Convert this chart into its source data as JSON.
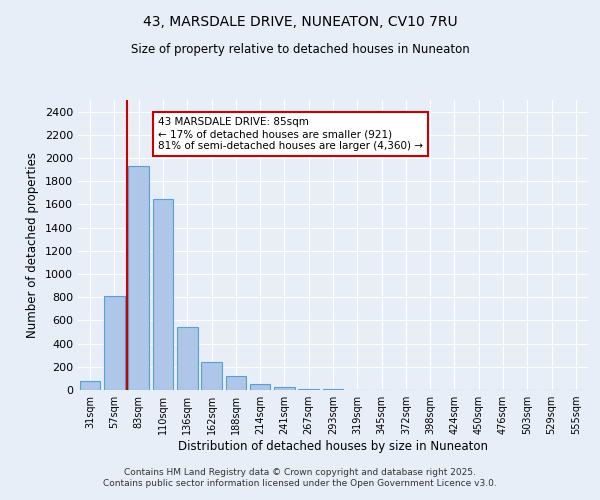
{
  "title1": "43, MARSDALE DRIVE, NUNEATON, CV10 7RU",
  "title2": "Size of property relative to detached houses in Nuneaton",
  "xlabel": "Distribution of detached houses by size in Nuneaton",
  "ylabel": "Number of detached properties",
  "annotation_title": "43 MARSDALE DRIVE: 85sqm",
  "annotation_line1": "← 17% of detached houses are smaller (921)",
  "annotation_line2": "81% of semi-detached houses are larger (4,360) →",
  "footer1": "Contains HM Land Registry data © Crown copyright and database right 2025.",
  "footer2": "Contains public sector information licensed under the Open Government Licence v3.0.",
  "categories": [
    "31sqm",
    "57sqm",
    "83sqm",
    "110sqm",
    "136sqm",
    "162sqm",
    "188sqm",
    "214sqm",
    "241sqm",
    "267sqm",
    "293sqm",
    "319sqm",
    "345sqm",
    "372sqm",
    "398sqm",
    "424sqm",
    "450sqm",
    "476sqm",
    "503sqm",
    "529sqm",
    "555sqm"
  ],
  "values": [
    75,
    810,
    1930,
    1650,
    540,
    240,
    125,
    55,
    25,
    10,
    5,
    3,
    2,
    1,
    0,
    0,
    0,
    0,
    0,
    0,
    0
  ],
  "bar_color": "#aec6e8",
  "bar_edge_color": "#5a9fd4",
  "vline_x": 2,
  "vline_color": "#cc0000",
  "annotation_box_color": "#cc0000",
  "background_color": "#e8eef8",
  "ylim": [
    0,
    2500
  ],
  "yticks": [
    0,
    200,
    400,
    600,
    800,
    1000,
    1200,
    1400,
    1600,
    1800,
    2000,
    2200,
    2400
  ],
  "grid_color": "#ffffff"
}
